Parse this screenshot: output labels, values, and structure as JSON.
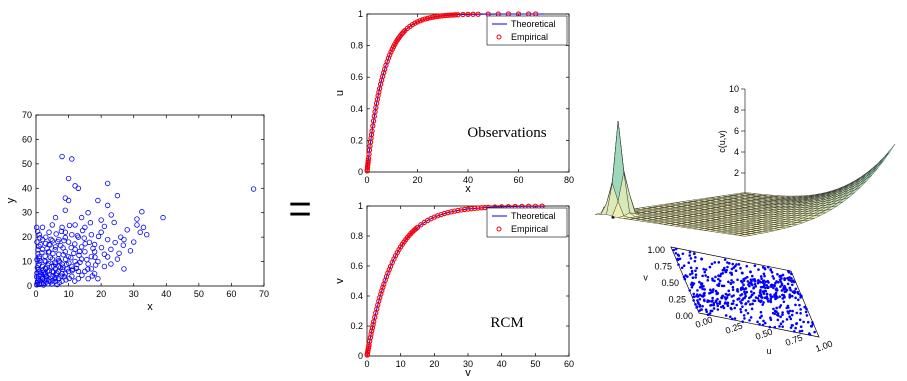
{
  "operators": {
    "equals": "=",
    "plus": "+"
  },
  "chart_data": [
    {
      "id": "scatter",
      "type": "scatter",
      "xlabel": "x",
      "ylabel": "y",
      "xlim": [
        0,
        70
      ],
      "ylim": [
        0,
        70
      ],
      "xticks": [
        0,
        10,
        20,
        30,
        40,
        50,
        60,
        70
      ],
      "yticks": [
        0,
        10,
        20,
        30,
        40,
        50,
        60,
        70
      ],
      "marker": "circle-open",
      "color": "#0000ff",
      "points": [
        [
          1,
          1
        ],
        [
          2,
          3
        ],
        [
          0.5,
          2
        ],
        [
          3,
          5
        ],
        [
          1,
          6
        ],
        [
          4,
          2
        ],
        [
          2,
          8
        ],
        [
          5,
          4
        ],
        [
          3,
          10
        ],
        [
          6,
          7
        ],
        [
          1,
          12
        ],
        [
          4,
          14
        ],
        [
          7,
          3
        ],
        [
          2,
          15
        ],
        [
          8,
          9
        ],
        [
          5,
          11
        ],
        [
          0.3,
          18
        ],
        [
          3,
          20
        ],
        [
          9,
          5
        ],
        [
          6,
          16
        ],
        [
          10,
          12
        ],
        [
          4,
          22
        ],
        [
          7,
          19
        ],
        [
          11,
          8
        ],
        [
          2,
          24
        ],
        [
          8,
          24
        ],
        [
          12,
          15
        ],
        [
          5,
          25
        ],
        [
          13,
          6
        ],
        [
          9,
          22
        ],
        [
          14,
          11
        ],
        [
          10,
          18
        ],
        [
          6,
          9
        ],
        [
          15,
          14
        ],
        [
          3,
          4
        ],
        [
          16,
          9
        ],
        [
          11,
          21
        ],
        [
          7,
          13
        ],
        [
          17,
          12
        ],
        [
          12,
          25
        ],
        [
          18,
          17
        ],
        [
          8,
          5
        ],
        [
          19,
          10
        ],
        [
          13,
          20
        ],
        [
          20,
          22
        ],
        [
          14,
          28
        ],
        [
          21,
          8
        ],
        [
          9,
          31
        ],
        [
          22,
          19
        ],
        [
          15,
          24
        ],
        [
          23,
          15
        ],
        [
          10,
          35
        ],
        [
          24,
          26
        ],
        [
          16,
          30
        ],
        [
          26,
          20
        ],
        [
          17,
          21
        ],
        [
          28,
          23
        ],
        [
          18,
          14
        ],
        [
          30,
          18
        ],
        [
          20,
          27
        ],
        [
          32,
          22
        ],
        [
          22,
          33
        ],
        [
          33,
          24
        ],
        [
          25,
          37
        ],
        [
          34,
          21
        ],
        [
          13,
          40
        ],
        [
          27,
          19
        ],
        [
          39,
          28
        ],
        [
          19,
          35
        ],
        [
          31,
          25
        ],
        [
          12,
          41
        ],
        [
          22,
          42
        ],
        [
          10,
          44
        ],
        [
          8,
          53
        ],
        [
          11,
          52
        ],
        [
          9,
          36
        ],
        [
          6,
          28
        ],
        [
          4,
          17
        ],
        [
          1,
          21
        ],
        [
          0.2,
          24
        ],
        [
          2,
          19
        ],
        [
          1,
          9
        ],
        [
          3,
          7
        ],
        [
          5,
          6
        ],
        [
          6,
          3
        ],
        [
          7,
          8
        ],
        [
          8,
          2
        ],
        [
          9,
          14
        ],
        [
          10,
          6
        ],
        [
          11,
          4
        ],
        [
          12,
          10
        ],
        [
          13,
          3
        ],
        [
          14,
          16
        ],
        [
          15,
          6
        ],
        [
          16,
          3
        ],
        [
          17,
          7
        ],
        [
          18,
          5
        ],
        [
          19,
          3
        ],
        [
          21,
          13
        ],
        [
          23,
          9
        ],
        [
          25,
          11
        ],
        [
          27,
          7
        ],
        [
          0.8,
          3
        ],
        [
          1.6,
          4.5
        ],
        [
          2.4,
          1.2
        ],
        [
          3.3,
          2.7
        ],
        [
          4.1,
          6.2
        ],
        [
          4.9,
          0.8
        ],
        [
          5.7,
          3.3
        ],
        [
          6.4,
          5.2
        ],
        [
          7.2,
          1.4
        ],
        [
          8.1,
          6.8
        ],
        [
          0.4,
          7.5
        ],
        [
          1.2,
          10.4
        ],
        [
          2.8,
          12.2
        ],
        [
          3.6,
          8.6
        ],
        [
          4.4,
          11.7
        ],
        [
          5.2,
          13.3
        ],
        [
          6.0,
          1.9
        ],
        [
          6.8,
          11.1
        ],
        [
          7.6,
          16.5
        ],
        [
          8.4,
          12.8
        ],
        [
          9.2,
          2.5
        ],
        [
          10.1,
          9.3
        ],
        [
          10.8,
          15.7
        ],
        [
          11.6,
          13.4
        ],
        [
          12.4,
          7.2
        ],
        [
          13.2,
          12.6
        ],
        [
          14.1,
          4.4
        ],
        [
          14.8,
          19.6
        ],
        [
          15.6,
          10.8
        ],
        [
          16.4,
          17.9
        ],
        [
          17.3,
          4.1
        ],
        [
          18.1,
          11.8
        ],
        [
          0.6,
          14.8
        ],
        [
          1.4,
          16.9
        ],
        [
          2.2,
          5.6
        ],
        [
          3.0,
          17.4
        ],
        [
          3.8,
          13.9
        ],
        [
          4.6,
          19.1
        ],
        [
          5.4,
          8.2
        ],
        [
          6.2,
          21.3
        ],
        [
          7.0,
          10.3
        ],
        [
          7.8,
          22.4
        ],
        [
          8.6,
          18.6
        ],
        [
          9.4,
          8.8
        ],
        [
          10.3,
          24.8
        ],
        [
          11.1,
          6.3
        ],
        [
          11.9,
          17.2
        ],
        [
          12.7,
          20.6
        ],
        [
          13.5,
          9.7
        ],
        [
          14.3,
          22.7
        ],
        [
          15.1,
          17.3
        ],
        [
          15.9,
          6.9
        ],
        [
          16.7,
          25.9
        ],
        [
          17.5,
          15.4
        ],
        [
          18.3,
          8.6
        ],
        [
          19.2,
          20.3
        ],
        [
          20.1,
          15.7
        ],
        [
          21.0,
          24.4
        ],
        [
          22.0,
          11.9
        ],
        [
          23.1,
          29.1
        ],
        [
          24.3,
          17.8
        ],
        [
          25.5,
          13.4
        ],
        [
          26.8,
          16.7
        ],
        [
          29.0,
          14.4
        ],
        [
          31.0,
          27.4
        ],
        [
          32.5,
          30.4
        ],
        [
          0.2,
          0.5
        ],
        [
          0.4,
          1.4
        ],
        [
          0.7,
          2.9
        ],
        [
          0.9,
          4.1
        ],
        [
          1.1,
          0.7
        ],
        [
          1.3,
          2.1
        ],
        [
          1.5,
          5.6
        ],
        [
          1.7,
          1.1
        ],
        [
          1.9,
          3.4
        ],
        [
          2.1,
          6.6
        ],
        [
          2.3,
          0.4
        ],
        [
          2.5,
          2.4
        ],
        [
          2.7,
          4.8
        ],
        [
          2.9,
          7.3
        ],
        [
          3.1,
          1.6
        ],
        [
          3.3,
          3.9
        ],
        [
          3.5,
          6.1
        ],
        [
          3.7,
          0.9
        ],
        [
          3.9,
          9.2
        ],
        [
          4.2,
          4.6
        ],
        [
          4.5,
          1.7
        ],
        [
          4.8,
          7.9
        ],
        [
          5.1,
          2.2
        ],
        [
          5.4,
          5.7
        ],
        [
          5.8,
          9.6
        ],
        [
          6.1,
          4.5
        ],
        [
          6.5,
          0.6
        ],
        [
          6.9,
          6.0
        ],
        [
          7.3,
          9.9
        ],
        [
          7.7,
          4.0
        ],
        [
          8.2,
          7.7
        ],
        [
          8.7,
          3.8
        ],
        [
          9.1,
          10.9
        ],
        [
          9.6,
          7.0
        ],
        [
          10.2,
          3.1
        ],
        [
          10.7,
          11.6
        ],
        [
          11.3,
          6.9
        ],
        [
          11.9,
          2.0
        ],
        [
          12.6,
          8.8
        ],
        [
          13.4,
          14.1
        ],
        [
          0.3,
          10.8
        ],
        [
          0.6,
          13.2
        ],
        [
          0.9,
          16.2
        ],
        [
          1.2,
          19.7
        ],
        [
          0.5,
          22.3
        ],
        [
          0.3,
          5.3
        ],
        [
          0.7,
          8.4
        ],
        [
          1.0,
          11.3
        ],
        [
          0.2,
          3.8
        ],
        [
          0.8,
          6.7
        ],
        [
          1.8,
          13.7
        ],
        [
          2.6,
          10.3
        ],
        [
          3.4,
          15.3
        ],
        [
          4.3,
          16.8
        ],
        [
          5.0,
          18.5
        ],
        [
          5.9,
          14.9
        ],
        [
          6.7,
          18.2
        ],
        [
          7.5,
          7.4
        ],
        [
          8.3,
          15.6
        ],
        [
          9.0,
          19.8
        ],
        [
          66.8,
          39.7
        ]
      ]
    },
    {
      "id": "cdf-x",
      "type": "line",
      "xlabel": "x",
      "ylabel": "u",
      "xlim": [
        0,
        80
      ],
      "ylim": [
        0,
        1
      ],
      "xticks": [
        0,
        20,
        40,
        60,
        80
      ],
      "yticks": [
        0,
        0.2,
        0.4,
        0.6,
        0.8,
        1
      ],
      "ytick_labels": [
        "0",
        "0.2",
        "0.4",
        "0.6",
        "0.8",
        "1"
      ],
      "annotation": "Observations",
      "rate": 0.15,
      "series": [
        {
          "name": "Theoretical",
          "color": "#0000ff",
          "style": "line",
          "x": [
            0,
            1,
            2,
            3,
            4,
            5,
            6,
            7,
            8,
            9,
            10,
            12,
            14,
            16,
            18,
            20,
            22,
            24,
            26,
            28,
            30,
            35,
            40,
            45,
            50,
            55,
            60,
            65,
            70
          ]
        },
        {
          "name": "Empirical",
          "color": "#ff0000",
          "style": "circle-open",
          "x": [
            0.05,
            0.1,
            0.2,
            0.3,
            0.4,
            0.5,
            0.6,
            0.8,
            1.0,
            1.2,
            1.4,
            1.6,
            1.8,
            2.0,
            2.3,
            2.6,
            2.9,
            3.2,
            3.5,
            3.8,
            4.1,
            4.4,
            4.7,
            5.0,
            5.4,
            5.8,
            6.2,
            6.6,
            7.0,
            7.5,
            8.0,
            8.5,
            9.0,
            9.5,
            10,
            10.5,
            11,
            11.5,
            12,
            12.5,
            13,
            13.5,
            14,
            14.5,
            15,
            16,
            17,
            18,
            19,
            20,
            21,
            22,
            23,
            24,
            25,
            26,
            27,
            28,
            29,
            30,
            31,
            32,
            33,
            34,
            35,
            36,
            38,
            40,
            42,
            44,
            48,
            52,
            56,
            60,
            64,
            66.8
          ]
        }
      ],
      "legend_position": "top-right"
    },
    {
      "id": "cdf-v",
      "type": "line",
      "xlabel": "v",
      "ylabel": "v",
      "xlim": [
        0,
        60
      ],
      "ylim": [
        0,
        1
      ],
      "xticks": [
        0,
        10,
        20,
        30,
        40,
        50,
        60
      ],
      "yticks": [
        0,
        0.2,
        0.4,
        0.6,
        0.8,
        1
      ],
      "ytick_labels": [
        "0",
        "0.2",
        "0.4",
        "0.6",
        "0.8",
        "1"
      ],
      "annotation": "RCM",
      "rate": 0.13,
      "series": [
        {
          "name": "Theoretical",
          "color": "#0000ff",
          "style": "line",
          "x": [
            0,
            1,
            2,
            3,
            4,
            5,
            6,
            7,
            8,
            9,
            10,
            12,
            14,
            16,
            18,
            20,
            22,
            24,
            26,
            28,
            30,
            35,
            40,
            45,
            50,
            53
          ]
        },
        {
          "name": "Empirical",
          "color": "#ff0000",
          "style": "circle-open",
          "x": [
            0.05,
            0.1,
            0.2,
            0.3,
            0.4,
            0.5,
            0.6,
            0.8,
            1.0,
            1.2,
            1.4,
            1.6,
            1.8,
            2.0,
            2.3,
            2.6,
            2.9,
            3.2,
            3.5,
            3.8,
            4.1,
            4.4,
            4.7,
            5.0,
            5.4,
            5.8,
            6.2,
            6.6,
            7.0,
            7.5,
            8.0,
            8.5,
            9.0,
            9.5,
            10,
            10.5,
            11,
            11.5,
            12,
            12.5,
            13,
            13.5,
            14,
            14.5,
            15,
            16,
            17,
            18,
            19,
            20,
            21,
            22,
            23,
            24,
            25,
            26,
            27,
            28,
            29,
            30,
            31,
            32,
            33,
            34,
            35,
            36,
            38,
            40,
            42,
            44,
            46,
            48,
            50,
            52
          ]
        }
      ],
      "legend_position": "top-right"
    },
    {
      "id": "copula",
      "type": "surface",
      "xlabel": "u",
      "ylabel": "v",
      "zlabel": "c(u,v)",
      "zlim": [
        0,
        10
      ],
      "zticks": [
        2,
        4,
        6,
        8,
        10
      ],
      "uticks": [
        "0.00",
        "0.25",
        "0.50",
        "0.75",
        "1.00"
      ],
      "vticks": [
        "0.00",
        "0.25",
        "0.50",
        "0.75",
        "1.00"
      ],
      "grid": 26,
      "scatter_color": "#0000ff",
      "scatter_count": 520
    }
  ]
}
